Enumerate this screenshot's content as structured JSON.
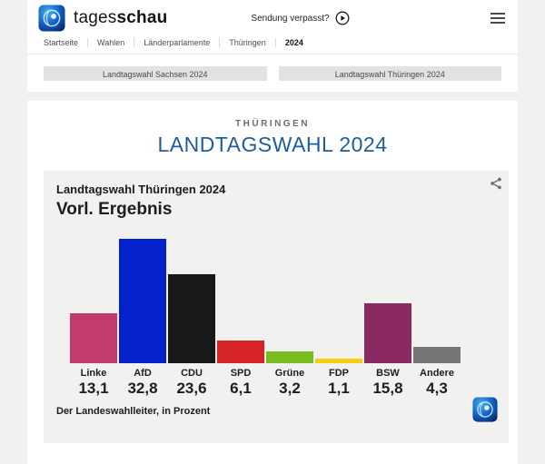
{
  "header": {
    "brand": {
      "wordmark_regular": "tages",
      "wordmark_bold": "schau"
    },
    "sendung_verpasst": "Sendung verpasst?",
    "breadcrumb": [
      "Startseite",
      "Wahlen",
      "Länderparlamente",
      "Thüringen",
      "2024"
    ]
  },
  "quick_links": [
    "Landtagswahl Sachsen 2024",
    "Landtagswahl Thüringen 2024"
  ],
  "page": {
    "kicker": "THÜRINGEN",
    "title": "LANDTAGSWAHL 2024"
  },
  "chart_data": {
    "type": "bar",
    "title": "Landtagswahl Thüringen 2024",
    "subtitle": "Vorl. Ergebnis",
    "categories": [
      "Linke",
      "AfD",
      "CDU",
      "SPD",
      "Grüne",
      "FDP",
      "BSW",
      "Andere"
    ],
    "values": [
      13.1,
      32.8,
      23.6,
      6.1,
      3.2,
      1.1,
      15.8,
      4.3
    ],
    "value_labels": [
      "13,1",
      "32,8",
      "23,6",
      "6,1",
      "3,2",
      "1,1",
      "15,8",
      "4,3"
    ],
    "bar_colors": [
      "#c23b6e",
      "#0422cc",
      "#19191a",
      "#d52327",
      "#79bc1f",
      "#f6cd0f",
      "#8b2a62",
      "#757575"
    ],
    "unit": "Prozent",
    "ylim": [
      0,
      35
    ],
    "grid": false,
    "legend": "none",
    "source": "Der Landeswahlleiter, in Prozent"
  },
  "icons": {
    "play": "circled-play-icon",
    "menu": "hamburger-menu-icon",
    "share": "share-nodes-icon",
    "brand": "tagesschau-globe-icon"
  },
  "colors": {
    "accent_blue": "#1d5d9b",
    "page_background": "#f0f0f0",
    "card_background": "#ffffff",
    "chart_background": "#f1f1ef",
    "button_background": "#e2e2e2"
  }
}
